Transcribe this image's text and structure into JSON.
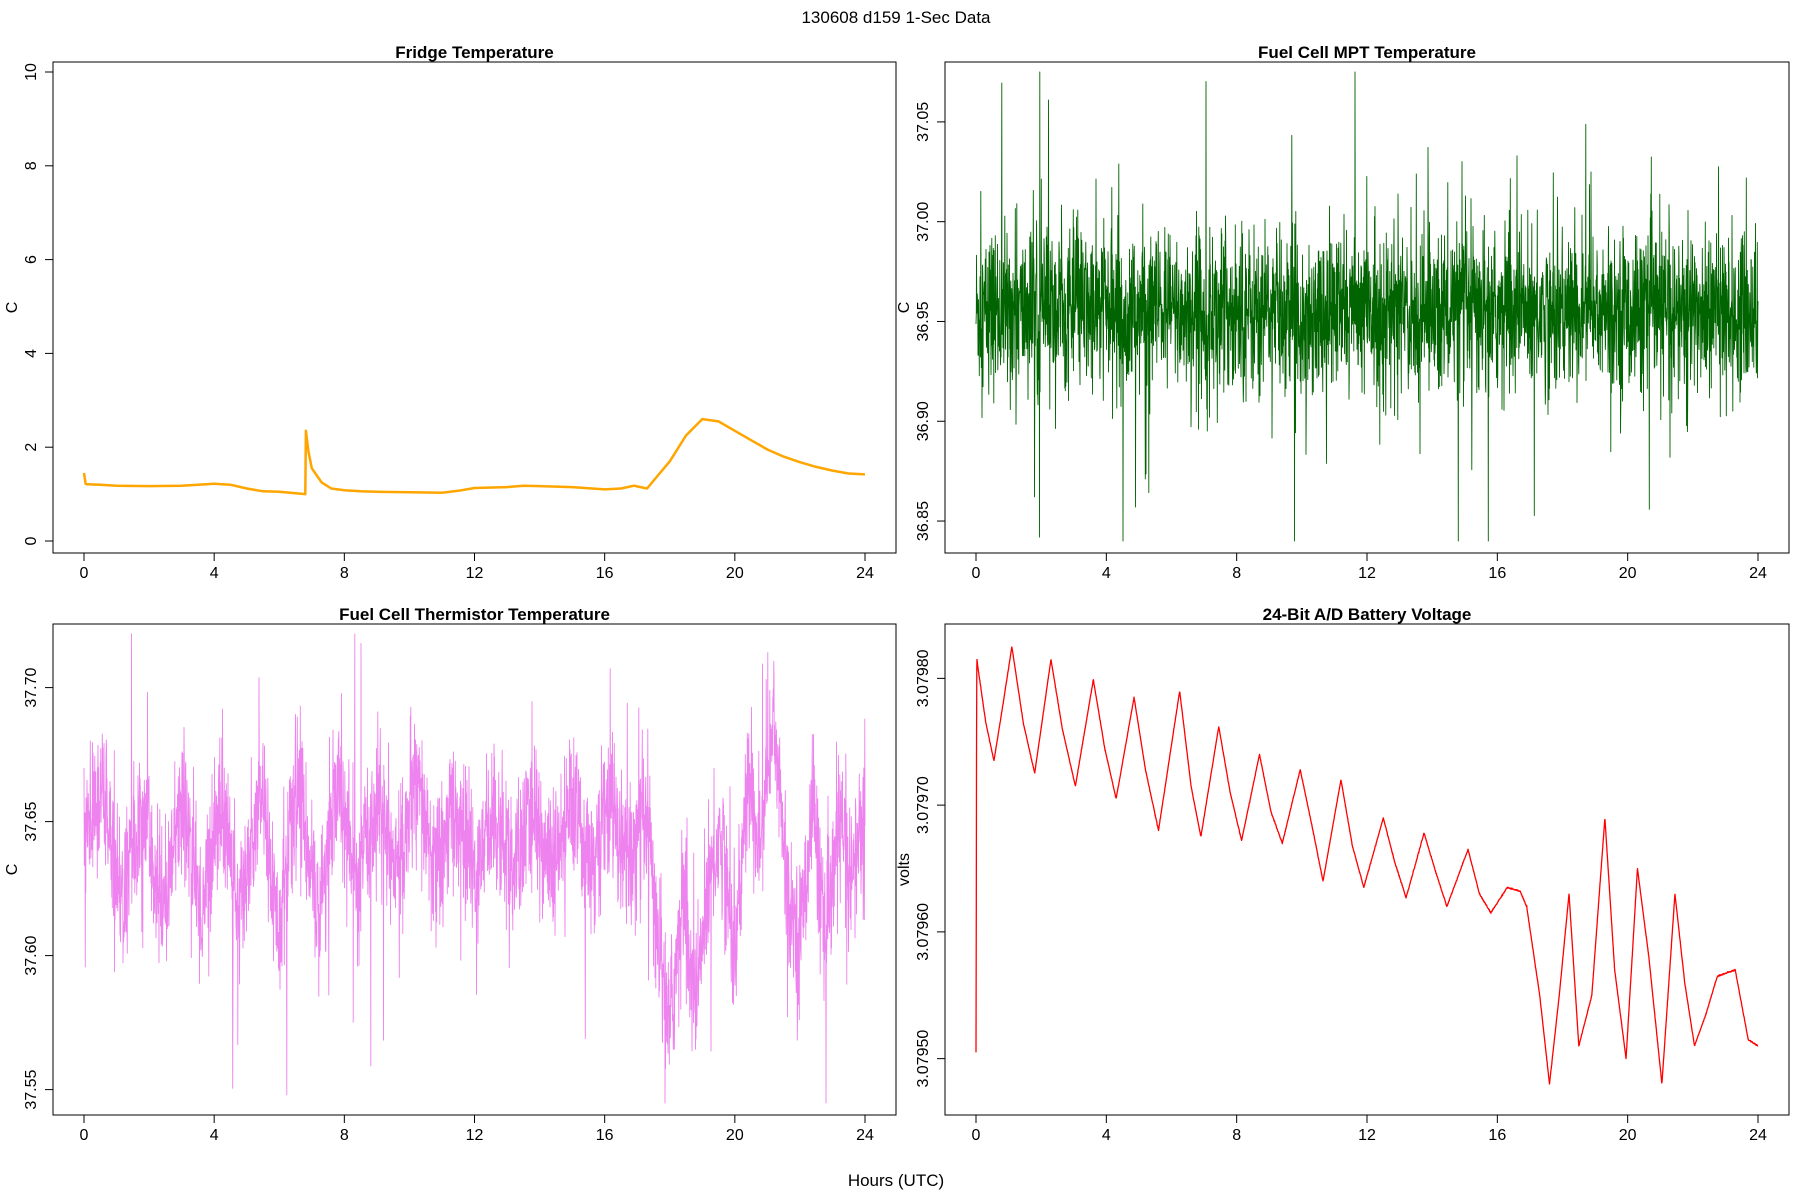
{
  "page_title": "130608   d159   1-Sec Data",
  "shared_xlabel": "Hours (UTC)",
  "chart_data": [
    {
      "type": "line",
      "title": "Fridge Temperature",
      "ylabel": "C",
      "xlabel": "",
      "xlim": [
        0,
        24
      ],
      "ylim": [
        0,
        10
      ],
      "xticks": [
        0,
        4,
        8,
        12,
        16,
        20,
        24
      ],
      "yticks": [
        0,
        2,
        4,
        6,
        8,
        10
      ],
      "ytick_labels": [
        "0",
        "2",
        "4",
        "6",
        "8",
        "10"
      ],
      "color": "#ffa500",
      "noise": 0,
      "grid": false,
      "series": [
        {
          "x": [
            0,
            0.05,
            0.1,
            0.5,
            1,
            2,
            3,
            4,
            4.5,
            5,
            5.5,
            6,
            6.5,
            6.8,
            6.82,
            6.9,
            7,
            7.3,
            7.6,
            8,
            8.5,
            9,
            10,
            11,
            11.5,
            12,
            13,
            13.5,
            14,
            15,
            16,
            16.5,
            16.9,
            17.3,
            18,
            18.5,
            19,
            19.5,
            20,
            20.5,
            21,
            21.5,
            22,
            22.5,
            23,
            23.5,
            24
          ],
          "y": [
            1.45,
            1.22,
            1.21,
            1.2,
            1.18,
            1.17,
            1.18,
            1.22,
            1.2,
            1.12,
            1.06,
            1.05,
            1.02,
            1.0,
            2.35,
            1.9,
            1.55,
            1.25,
            1.12,
            1.08,
            1.06,
            1.05,
            1.04,
            1.03,
            1.07,
            1.13,
            1.15,
            1.18,
            1.17,
            1.15,
            1.1,
            1.12,
            1.18,
            1.12,
            1.7,
            2.25,
            2.6,
            2.55,
            2.35,
            2.15,
            1.95,
            1.8,
            1.68,
            1.58,
            1.5,
            1.44,
            1.42
          ]
        }
      ]
    },
    {
      "type": "line",
      "title": "Fuel Cell MPT Temperature",
      "ylabel": "C",
      "xlabel": "",
      "xlim": [
        0,
        24
      ],
      "ylim": [
        36.84,
        37.075
      ],
      "xticks": [
        0,
        4,
        8,
        12,
        16,
        20,
        24
      ],
      "yticks": [
        36.85,
        36.9,
        36.95,
        37.0,
        37.05
      ],
      "ytick_labels": [
        "36.85",
        "36.90",
        "36.95",
        "37.00",
        "37.05"
      ],
      "color": "#006400",
      "noise": 0.045,
      "grid": false,
      "series": [
        {
          "x": [
            0,
            4,
            8,
            12,
            16,
            20,
            24
          ],
          "y": [
            36.955,
            36.955,
            36.955,
            36.955,
            36.955,
            36.955,
            36.955
          ]
        }
      ]
    },
    {
      "type": "line",
      "title": "Fuel Cell Thermistor Temperature",
      "ylabel": "C",
      "xlabel": "",
      "xlim": [
        0,
        24
      ],
      "ylim": [
        37.545,
        37.72
      ],
      "xticks": [
        0,
        4,
        8,
        12,
        16,
        20,
        24
      ],
      "yticks": [
        37.55,
        37.6,
        37.65,
        37.7
      ],
      "ytick_labels": [
        "37.55",
        "37.60",
        "37.65",
        "37.70"
      ],
      "color": "#ee82ee",
      "noise": 0.03,
      "grid": false,
      "series": [
        {
          "x": [
            0,
            0.6,
            1.2,
            1.8,
            2.4,
            3.0,
            3.6,
            4.2,
            4.8,
            5.4,
            6.0,
            6.6,
            7.2,
            7.8,
            8.4,
            9.0,
            9.6,
            10.2,
            10.8,
            11.4,
            12.0,
            12.6,
            13.2,
            13.8,
            14.4,
            15.0,
            15.6,
            16.2,
            16.8,
            17.3,
            17.6,
            18.0,
            18.4,
            18.8,
            19.2,
            19.6,
            20.0,
            20.4,
            20.8,
            21.2,
            21.6,
            22.0,
            22.4,
            22.8,
            23.2,
            23.6,
            24.0
          ],
          "y": [
            37.645,
            37.66,
            37.62,
            37.655,
            37.615,
            37.66,
            37.615,
            37.66,
            37.615,
            37.665,
            37.61,
            37.665,
            37.615,
            37.665,
            37.625,
            37.66,
            37.63,
            37.665,
            37.63,
            37.655,
            37.63,
            37.655,
            37.63,
            37.655,
            37.63,
            37.655,
            37.635,
            37.655,
            37.635,
            37.65,
            37.61,
            37.575,
            37.62,
            37.58,
            37.63,
            37.645,
            37.6,
            37.665,
            37.64,
            37.69,
            37.625,
            37.605,
            37.66,
            37.6,
            37.65,
            37.63,
            37.655
          ]
        }
      ]
    },
    {
      "type": "line",
      "title": "24-Bit A/D Battery Voltage",
      "ylabel": "volts",
      "xlabel": "",
      "xlim": [
        0,
        24
      ],
      "ylim": [
        3.079465,
        3.079835
      ],
      "xticks": [
        0,
        4,
        8,
        12,
        16,
        20,
        24
      ],
      "yticks": [
        3.0795,
        3.0796,
        3.0797,
        3.0798
      ],
      "ytick_labels": [
        "3.07950",
        "3.07960",
        "3.07970",
        "3.07980"
      ],
      "color": "#ff0000",
      "noise": 1.2e-06,
      "grid": false,
      "series": [
        {
          "x": [
            0,
            0.02,
            0.03,
            0.05,
            0.3,
            0.55,
            0.8,
            1.1,
            1.45,
            1.8,
            2.3,
            2.65,
            3.05,
            3.6,
            3.95,
            4.3,
            4.85,
            5.2,
            5.6,
            6.25,
            6.6,
            6.9,
            7.45,
            7.8,
            8.15,
            8.7,
            9.05,
            9.4,
            9.95,
            10.3,
            10.65,
            11.2,
            11.55,
            11.9,
            12.5,
            12.85,
            13.2,
            13.75,
            14.1,
            14.45,
            15.1,
            15.45,
            15.8,
            16.3,
            16.7,
            16.9,
            17.3,
            17.6,
            17.9,
            18.2,
            18.5,
            18.9,
            19.3,
            19.6,
            19.95,
            20.3,
            20.65,
            21.05,
            21.45,
            21.75,
            22.05,
            22.4,
            22.75,
            23.3,
            23.7,
            24.0
          ],
          "y": [
            3.079505,
            3.079805,
            3.079815,
            3.07981,
            3.079765,
            3.079735,
            3.079775,
            3.079825,
            3.079765,
            3.079725,
            3.079815,
            3.07976,
            3.079715,
            3.079799,
            3.079745,
            3.079705,
            3.079785,
            3.079728,
            3.07968,
            3.07979,
            3.079715,
            3.079675,
            3.079762,
            3.07971,
            3.079672,
            3.07974,
            3.079695,
            3.07967,
            3.079728,
            3.079685,
            3.07964,
            3.07972,
            3.079668,
            3.079635,
            3.07969,
            3.079655,
            3.079627,
            3.079678,
            3.079648,
            3.07962,
            3.079665,
            3.07963,
            3.079615,
            3.079635,
            3.079632,
            3.07962,
            3.07955,
            3.07948,
            3.07955,
            3.07963,
            3.07951,
            3.07955,
            3.07969,
            3.07957,
            3.0795,
            3.07965,
            3.07958,
            3.07948,
            3.07963,
            3.07956,
            3.07951,
            3.079535,
            3.079565,
            3.07957,
            3.079515,
            3.07951
          ]
        }
      ]
    }
  ]
}
